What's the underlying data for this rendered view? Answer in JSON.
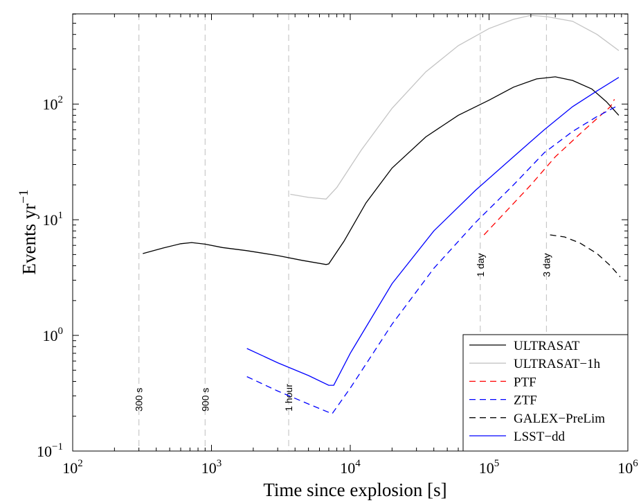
{
  "chart_data": {
    "type": "line",
    "xscale": "log",
    "yscale": "log",
    "xlim": [
      100,
      1000000
    ],
    "ylim": [
      0.1,
      600
    ],
    "xlabel": "Time since explosion [s]",
    "ylabel": "Events yr",
    "ylabel_sup": "−1",
    "x_ticks": [
      {
        "base": "10",
        "exp": "2",
        "value": 100
      },
      {
        "base": "10",
        "exp": "3",
        "value": 1000
      },
      {
        "base": "10",
        "exp": "4",
        "value": 10000
      },
      {
        "base": "10",
        "exp": "5",
        "value": 100000
      },
      {
        "base": "10",
        "exp": "6",
        "value": 1000000
      }
    ],
    "y_ticks": [
      {
        "base": "10",
        "exp": "−1",
        "value": 0.1
      },
      {
        "base": "10",
        "exp": "0",
        "value": 1
      },
      {
        "base": "10",
        "exp": "1",
        "value": 10
      },
      {
        "base": "10",
        "exp": "2",
        "value": 100
      }
    ],
    "annotations": [
      {
        "label": "300 s",
        "x": 300,
        "label_y": 0.22
      },
      {
        "label": "900 s",
        "x": 900,
        "label_y": 0.22
      },
      {
        "label": "1 hour",
        "x": 3600,
        "label_y": 0.22
      },
      {
        "label": "1 day",
        "x": 86400,
        "label_y": 3.2
      },
      {
        "label": "3 day",
        "x": 259200,
        "label_y": 3.2
      }
    ],
    "series": [
      {
        "name": "ULTRASAT",
        "color": "#000000",
        "dash": "solid",
        "points": [
          [
            320,
            5.1
          ],
          [
            450,
            5.7
          ],
          [
            600,
            6.2
          ],
          [
            720,
            6.35
          ],
          [
            900,
            6.15
          ],
          [
            1200,
            5.75
          ],
          [
            1800,
            5.4
          ],
          [
            3000,
            4.9
          ],
          [
            4500,
            4.45
          ],
          [
            6700,
            4.1
          ],
          [
            7000,
            4.15
          ],
          [
            9000,
            6.5
          ],
          [
            13000,
            14
          ],
          [
            20000,
            28
          ],
          [
            35000,
            52
          ],
          [
            60000,
            80
          ],
          [
            100000,
            108
          ],
          [
            150000,
            140
          ],
          [
            220000,
            165
          ],
          [
            300000,
            172
          ],
          [
            400000,
            160
          ],
          [
            550000,
            135
          ],
          [
            700000,
            105
          ],
          [
            860000,
            80
          ]
        ]
      },
      {
        "name": "ULTRASAT−1h",
        "color": "#c4c4c4",
        "dash": "solid",
        "points": [
          [
            3700,
            16.6
          ],
          [
            5000,
            15.6
          ],
          [
            6700,
            15.1
          ],
          [
            8000,
            19
          ],
          [
            12000,
            40
          ],
          [
            20000,
            92
          ],
          [
            35000,
            190
          ],
          [
            60000,
            320
          ],
          [
            100000,
            450
          ],
          [
            150000,
            540
          ],
          [
            200000,
            585
          ],
          [
            260000,
            570
          ],
          [
            400000,
            520
          ],
          [
            600000,
            400
          ],
          [
            860000,
            290
          ]
        ]
      },
      {
        "name": "PTF",
        "color": "#ff0000",
        "dash": "dashed",
        "points": [
          [
            92000,
            7.4
          ],
          [
            130000,
            11.5
          ],
          [
            200000,
            20
          ],
          [
            300000,
            35
          ],
          [
            450000,
            55
          ],
          [
            600000,
            75
          ],
          [
            750000,
            95
          ],
          [
            800000,
            110
          ]
        ]
      },
      {
        "name": "ZTF",
        "color": "#0000ff",
        "dash": "dashed",
        "points": [
          [
            1800,
            0.44
          ],
          [
            3000,
            0.33
          ],
          [
            5000,
            0.255
          ],
          [
            7400,
            0.21
          ],
          [
            10000,
            0.35
          ],
          [
            20000,
            1.25
          ],
          [
            40000,
            3.8
          ],
          [
            80000,
            9.5
          ],
          [
            150000,
            20
          ],
          [
            250000,
            38
          ],
          [
            400000,
            58
          ],
          [
            600000,
            78
          ],
          [
            860000,
            98
          ]
        ]
      },
      {
        "name": "GALEX−PreLim",
        "color": "#000000",
        "dash": "dashed",
        "points": [
          [
            275000,
            7.4
          ],
          [
            350000,
            7.1
          ],
          [
            450000,
            6.3
          ],
          [
            600000,
            5.1
          ],
          [
            750000,
            4.0
          ],
          [
            880000,
            3.2
          ]
        ]
      },
      {
        "name": "LSST−dd",
        "color": "#0000ff",
        "dash": "solid",
        "points": [
          [
            1800,
            0.77
          ],
          [
            3000,
            0.58
          ],
          [
            5000,
            0.45
          ],
          [
            7000,
            0.37
          ],
          [
            7600,
            0.37
          ],
          [
            10000,
            0.7
          ],
          [
            20000,
            2.8
          ],
          [
            40000,
            8
          ],
          [
            80000,
            18
          ],
          [
            150000,
            35
          ],
          [
            250000,
            60
          ],
          [
            400000,
            95
          ],
          [
            600000,
            130
          ],
          [
            860000,
            170
          ]
        ]
      }
    ],
    "legend_position": "bottom-right",
    "grid": false
  }
}
